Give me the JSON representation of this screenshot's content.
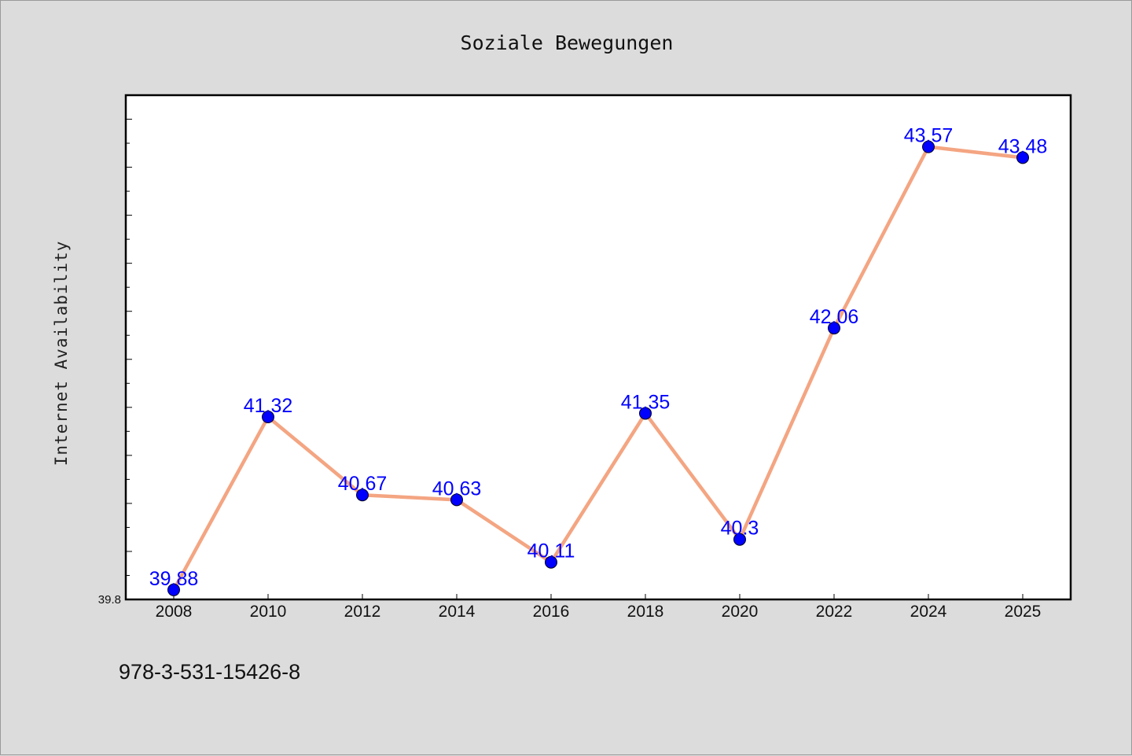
{
  "chart_data": {
    "type": "line",
    "title": "Soziale Bewegungen",
    "xlabel": "",
    "ylabel": "Internet Availability",
    "categories": [
      "2008",
      "2010",
      "2012",
      "2014",
      "2016",
      "2018",
      "2020",
      "2022",
      "2024",
      "2025"
    ],
    "series": [
      {
        "values": [
          39.88,
          41.32,
          40.67,
          40.63,
          40.11,
          41.35,
          40.3,
          42.06,
          43.57,
          43.48
        ],
        "labels": [
          "39.88",
          "41.32",
          "40.67",
          "40.63",
          "40.11",
          "41.35",
          "40.3",
          "42.06",
          "43.57",
          "43.48"
        ],
        "line_color": "#f4a582",
        "marker_color": "#0000ff"
      }
    ],
    "ylim": [
      39.8,
      44.0
    ],
    "yticks_labeled": [
      "39.8"
    ],
    "grid": false,
    "legend": "none"
  },
  "annotation": {
    "text": "978-3-531-15426-8"
  },
  "colors": {
    "background": "#dcdcdc",
    "plot_background": "#ffffff",
    "axis": "#000000"
  }
}
